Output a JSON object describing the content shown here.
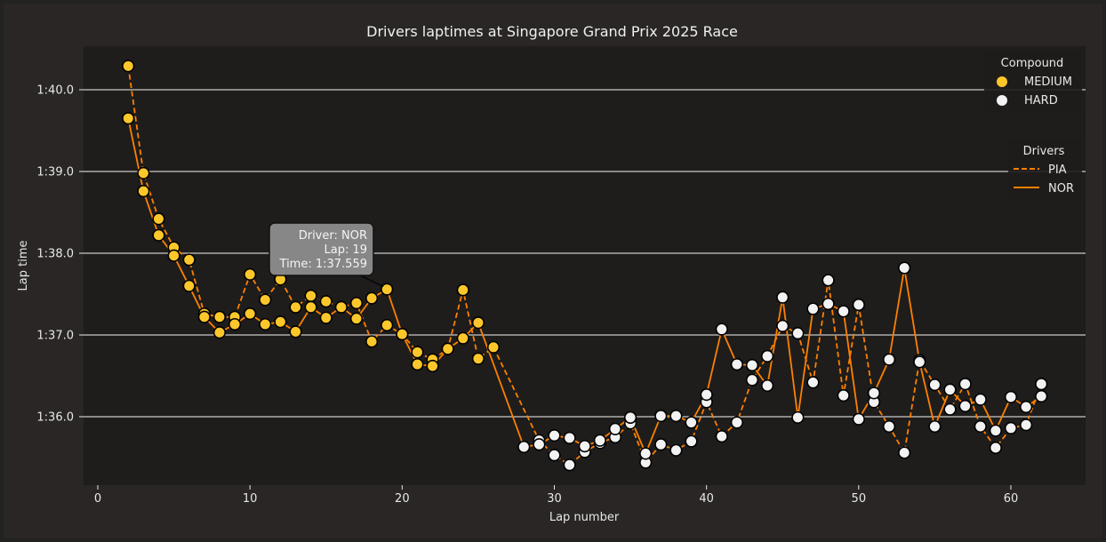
{
  "chart_data": {
    "type": "line",
    "title": "Drivers laptimes at Singapore Grand Prix 2025 Race",
    "xlabel": "Lap number",
    "ylabel": "Lap time",
    "xlim": [
      -1,
      65
    ],
    "ylim_seconds": [
      95.2,
      100.53
    ],
    "x_ticks": [
      0,
      10,
      20,
      30,
      40,
      50,
      60
    ],
    "y_ticks": [
      {
        "value": 96,
        "label": "1:36.0"
      },
      {
        "value": 97,
        "label": "1:37.0"
      },
      {
        "value": 98,
        "label": "1:38.0"
      },
      {
        "value": 99,
        "label": "1:39.0"
      },
      {
        "value": 100,
        "label": "1:40.0"
      }
    ],
    "grid": "horizontal",
    "compound_legend": {
      "title": "Compound",
      "placement": "top-right",
      "items": [
        {
          "label": "MEDIUM",
          "color": "#fcc72a"
        },
        {
          "label": "HARD",
          "color": "#f2f2f2"
        }
      ]
    },
    "driver_legend": {
      "title": "Drivers",
      "placement": "upper-right",
      "items": [
        {
          "label": "PIA",
          "style": "dashed"
        },
        {
          "label": "NOR",
          "style": "solid"
        }
      ]
    },
    "line_color": "#ff8000",
    "series": [
      {
        "name": "PIA",
        "style": "dashed",
        "laps": [
          2,
          3,
          4,
          5,
          6,
          7,
          8,
          9,
          10,
          11,
          12,
          13,
          14,
          15,
          16,
          17,
          18,
          19,
          20,
          21,
          22,
          23,
          24,
          25,
          26,
          29,
          30,
          31,
          32,
          33,
          34,
          35,
          36,
          37,
          38,
          39,
          40,
          41,
          42,
          43,
          44,
          45,
          46,
          47,
          48,
          49,
          50,
          51,
          52,
          53,
          54,
          55,
          56,
          57,
          58,
          59,
          60,
          61,
          62
        ],
        "times": [
          100.29,
          98.98,
          98.42,
          98.07,
          97.92,
          97.26,
          97.22,
          97.22,
          97.74,
          97.43,
          97.68,
          97.34,
          97.48,
          97.41,
          97.34,
          97.39,
          96.92,
          97.12,
          97.01,
          96.79,
          96.7,
          96.83,
          97.55,
          96.71,
          96.85,
          95.71,
          95.53,
          95.41,
          95.57,
          95.68,
          95.75,
          95.92,
          95.44,
          95.66,
          95.59,
          95.7,
          96.18,
          95.76,
          95.93,
          96.45,
          96.74,
          97.11,
          97.02,
          96.42,
          97.67,
          96.26,
          97.37,
          96.18,
          95.88,
          95.56,
          96.69,
          96.39,
          96.09,
          96.4,
          95.88,
          95.62,
          95.86,
          95.9,
          96.4
        ],
        "compounds": [
          "MEDIUM",
          "MEDIUM",
          "MEDIUM",
          "MEDIUM",
          "MEDIUM",
          "MEDIUM",
          "MEDIUM",
          "MEDIUM",
          "MEDIUM",
          "MEDIUM",
          "MEDIUM",
          "MEDIUM",
          "MEDIUM",
          "MEDIUM",
          "MEDIUM",
          "MEDIUM",
          "MEDIUM",
          "MEDIUM",
          "MEDIUM",
          "MEDIUM",
          "MEDIUM",
          "MEDIUM",
          "MEDIUM",
          "MEDIUM",
          "MEDIUM",
          "HARD",
          "HARD",
          "HARD",
          "HARD",
          "HARD",
          "HARD",
          "HARD",
          "HARD",
          "HARD",
          "HARD",
          "HARD",
          "HARD",
          "HARD",
          "HARD",
          "HARD",
          "HARD",
          "HARD",
          "HARD",
          "HARD",
          "HARD",
          "HARD",
          "HARD",
          "HARD",
          "HARD",
          "HARD",
          "HARD",
          "HARD",
          "HARD",
          "HARD",
          "HARD",
          "HARD",
          "HARD",
          "HARD",
          "HARD"
        ]
      },
      {
        "name": "NOR",
        "style": "solid",
        "laps": [
          2,
          3,
          4,
          5,
          6,
          7,
          8,
          9,
          10,
          11,
          12,
          13,
          14,
          15,
          16,
          17,
          18,
          19,
          20,
          21,
          22,
          23,
          24,
          25,
          28,
          29,
          30,
          31,
          32,
          33,
          34,
          35,
          36,
          37,
          38,
          39,
          40,
          41,
          42,
          43,
          44,
          45,
          46,
          47,
          48,
          49,
          50,
          51,
          52,
          53,
          54,
          55,
          56,
          57,
          58,
          59,
          60,
          61,
          62
        ],
        "times": [
          99.65,
          98.76,
          98.22,
          97.97,
          97.6,
          97.22,
          97.03,
          97.13,
          97.26,
          97.13,
          97.16,
          97.04,
          97.34,
          97.21,
          97.34,
          97.2,
          97.45,
          97.559,
          97.01,
          96.64,
          96.62,
          96.83,
          96.96,
          97.15,
          95.63,
          95.66,
          95.77,
          95.74,
          95.64,
          95.71,
          95.85,
          95.99,
          95.55,
          96.01,
          96.01,
          95.93,
          96.27,
          97.07,
          96.64,
          96.63,
          96.38,
          97.46,
          95.99,
          97.32,
          97.38,
          97.29,
          95.97,
          96.29,
          96.7,
          97.82,
          96.67,
          95.88,
          96.33,
          96.13,
          96.21,
          95.83,
          96.24,
          96.12,
          96.25
        ],
        "compounds": [
          "MEDIUM",
          "MEDIUM",
          "MEDIUM",
          "MEDIUM",
          "MEDIUM",
          "MEDIUM",
          "MEDIUM",
          "MEDIUM",
          "MEDIUM",
          "MEDIUM",
          "MEDIUM",
          "MEDIUM",
          "MEDIUM",
          "MEDIUM",
          "MEDIUM",
          "MEDIUM",
          "MEDIUM",
          "MEDIUM",
          "MEDIUM",
          "MEDIUM",
          "MEDIUM",
          "MEDIUM",
          "MEDIUM",
          "MEDIUM",
          "HARD",
          "HARD",
          "HARD",
          "HARD",
          "HARD",
          "HARD",
          "HARD",
          "HARD",
          "HARD",
          "HARD",
          "HARD",
          "HARD",
          "HARD",
          "HARD",
          "HARD",
          "HARD",
          "HARD",
          "HARD",
          "HARD",
          "HARD",
          "HARD",
          "HARD",
          "HARD",
          "HARD",
          "HARD",
          "HARD",
          "HARD",
          "HARD",
          "HARD",
          "HARD",
          "HARD",
          "HARD",
          "HARD",
          "HARD",
          "HARD"
        ]
      }
    ],
    "tooltip": {
      "driver_line": "Driver: NOR",
      "lap_line": "Lap: 19",
      "time_line": "Time: 1:37.559",
      "driver": "NOR",
      "lap": 19,
      "time_seconds": 97.559
    }
  }
}
